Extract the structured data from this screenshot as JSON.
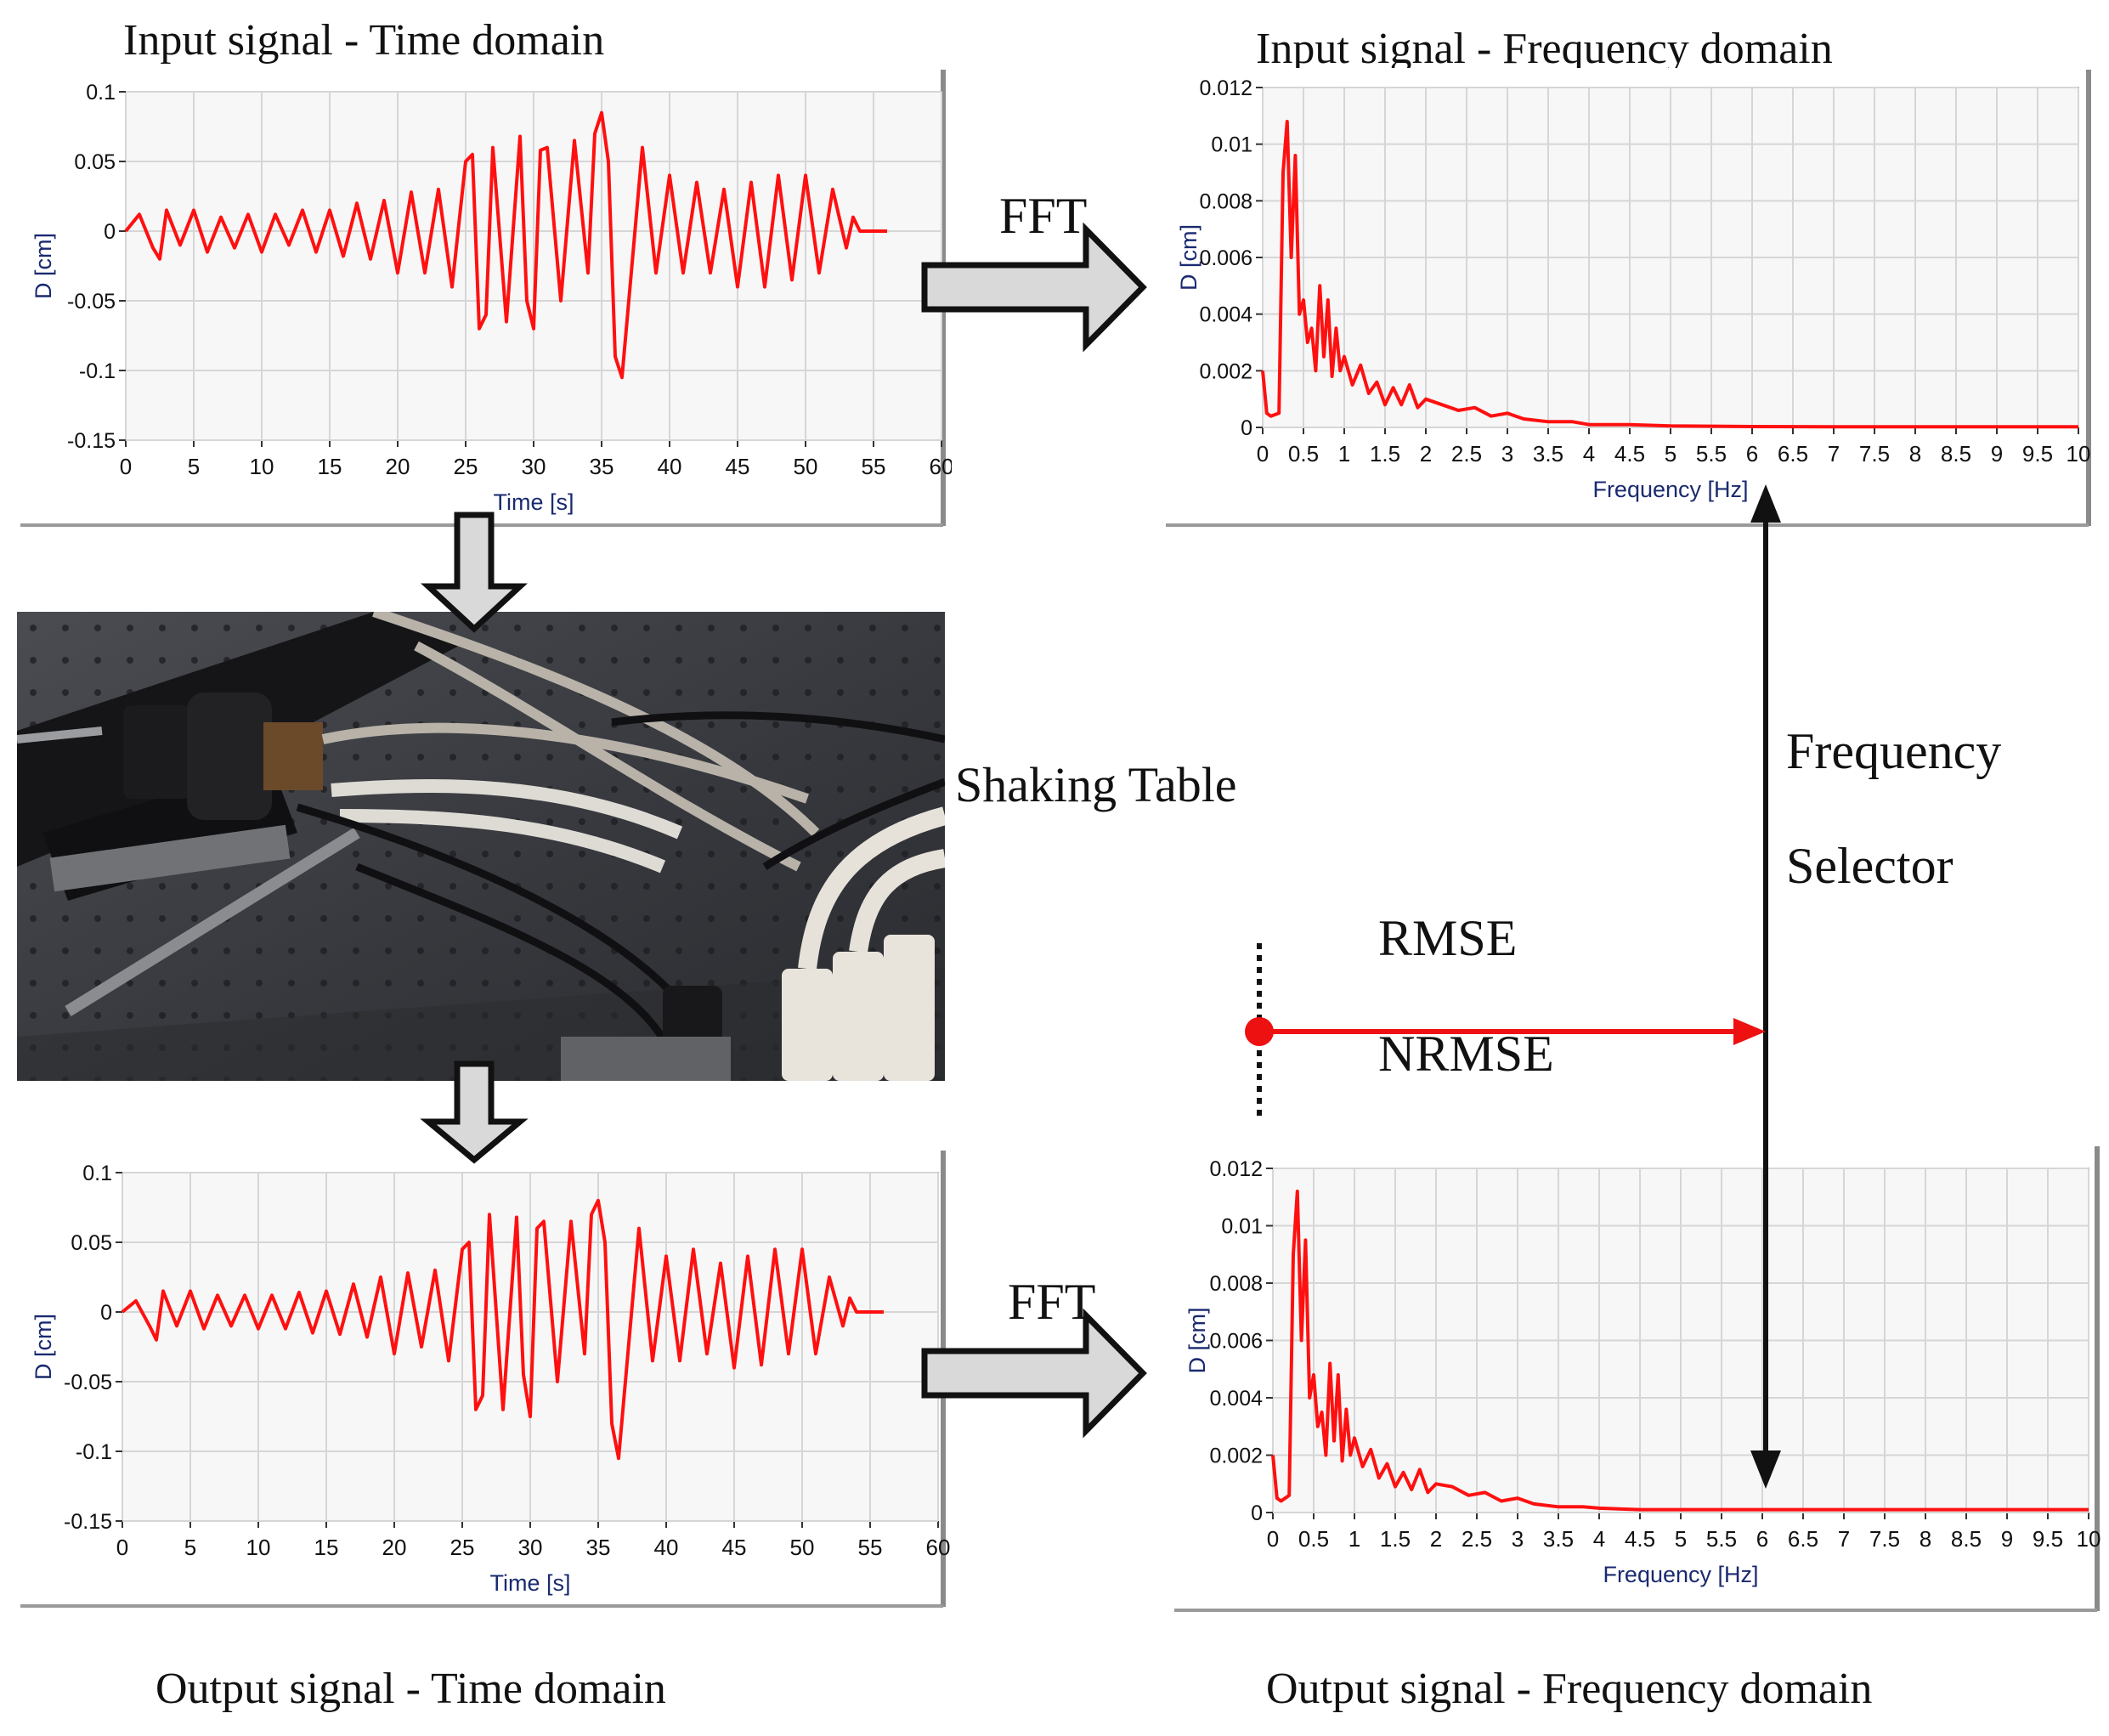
{
  "captions": {
    "input_time": "Input signal - Time domain",
    "input_freq": "Input signal - Frequency domain",
    "output_time": "Output signal - Time domain",
    "output_freq": "Output signal - Frequency domain"
  },
  "labels": {
    "fft_top": "FFT",
    "fft_bottom": "FFT",
    "shaking_table": "Shaking Table",
    "frequency": "Frequency",
    "selector": "Selector",
    "rmse": "RMSE",
    "nrmse": "NRMSE"
  },
  "colors": {
    "signal": "#ff1010",
    "grid": "#d6d6d6",
    "axis_label": "#1a2a70",
    "arrow_fill": "#d9d9d9"
  },
  "chart_data": [
    {
      "id": "input_time",
      "type": "line",
      "xlabel": "Time [s]",
      "ylabel": "D [cm]",
      "xlim": [
        0,
        60
      ],
      "ylim": [
        -0.15,
        0.1
      ],
      "xticks": [
        "0",
        "5",
        "10",
        "15",
        "20",
        "25",
        "30",
        "35",
        "40",
        "45",
        "50",
        "55",
        "60"
      ],
      "yticks": [
        "0.1",
        "0.05",
        "0",
        "-0.05",
        "-0.1",
        "-0.15"
      ],
      "grid": true,
      "x": [
        0,
        1,
        2,
        2.5,
        3,
        4,
        5,
        6,
        7,
        8,
        9,
        10,
        11,
        12,
        13,
        14,
        15,
        16,
        17,
        18,
        19,
        20,
        21,
        22,
        23,
        24,
        25,
        25.5,
        26,
        26.5,
        27,
        28,
        29,
        29.5,
        30,
        30.5,
        31,
        32,
        33,
        34,
        34.5,
        35,
        35.5,
        36,
        36.5,
        37,
        38,
        39,
        40,
        41,
        42,
        43,
        44,
        45,
        46,
        47,
        48,
        49,
        50,
        51,
        52,
        53,
        53.5,
        54,
        55,
        56
      ],
      "y": [
        0,
        0.012,
        -0.012,
        -0.02,
        0.015,
        -0.01,
        0.015,
        -0.015,
        0.01,
        -0.012,
        0.012,
        -0.015,
        0.012,
        -0.01,
        0.015,
        -0.015,
        0.015,
        -0.018,
        0.02,
        -0.02,
        0.022,
        -0.03,
        0.028,
        -0.03,
        0.03,
        -0.04,
        0.05,
        0.055,
        -0.07,
        -0.06,
        0.06,
        -0.065,
        0.068,
        -0.05,
        -0.07,
        0.058,
        0.06,
        -0.05,
        0.065,
        -0.03,
        0.07,
        0.085,
        0.05,
        -0.09,
        -0.105,
        -0.05,
        0.06,
        -0.03,
        0.04,
        -0.03,
        0.035,
        -0.03,
        0.03,
        -0.04,
        0.035,
        -0.04,
        0.04,
        -0.035,
        0.04,
        -0.03,
        0.03,
        -0.012,
        0.01,
        0,
        0,
        0
      ]
    },
    {
      "id": "input_freq",
      "type": "line",
      "xlabel": "Frequency [Hz]",
      "ylabel": "D [cm]",
      "xlim": [
        0,
        10
      ],
      "ylim": [
        0,
        0.012
      ],
      "xticks": [
        "0",
        "0.5",
        "1",
        "1.5",
        "2",
        "2.5",
        "3",
        "3.5",
        "4",
        "4.5",
        "5",
        "5.5",
        "6",
        "6.5",
        "7",
        "7.5",
        "8",
        "8.5",
        "9",
        "9.5",
        "10"
      ],
      "yticks": [
        "0.012",
        "0.01",
        "0.008",
        "0.006",
        "0.004",
        "0.002",
        "0"
      ],
      "grid": true,
      "x": [
        0,
        0.05,
        0.1,
        0.2,
        0.25,
        0.3,
        0.35,
        0.4,
        0.45,
        0.5,
        0.55,
        0.6,
        0.65,
        0.7,
        0.75,
        0.8,
        0.85,
        0.9,
        0.95,
        1,
        1.1,
        1.2,
        1.3,
        1.4,
        1.5,
        1.6,
        1.7,
        1.8,
        1.9,
        2,
        2.2,
        2.4,
        2.6,
        2.8,
        3,
        3.2,
        3.5,
        3.8,
        4,
        4.5,
        5,
        6,
        7,
        8,
        9,
        10
      ],
      "y": [
        0.002,
        0.0005,
        0.0004,
        0.0005,
        0.009,
        0.0108,
        0.006,
        0.0096,
        0.004,
        0.0045,
        0.003,
        0.0035,
        0.002,
        0.005,
        0.0025,
        0.0045,
        0.0018,
        0.0035,
        0.002,
        0.0025,
        0.0015,
        0.0022,
        0.0012,
        0.0016,
        0.0008,
        0.0014,
        0.0008,
        0.0015,
        0.0007,
        0.001,
        0.0008,
        0.0006,
        0.0007,
        0.0004,
        0.0005,
        0.0003,
        0.0002,
        0.0002,
        0.0001,
        0.0001,
        5e-05,
        3e-05,
        2e-05,
        2e-05,
        2e-05,
        2e-05
      ]
    },
    {
      "id": "output_time",
      "type": "line",
      "xlabel": "Time [s]",
      "ylabel": "D [cm]",
      "xlim": [
        0,
        60
      ],
      "ylim": [
        -0.15,
        0.1
      ],
      "xticks": [
        "0",
        "5",
        "10",
        "15",
        "20",
        "25",
        "30",
        "35",
        "40",
        "45",
        "50",
        "55",
        "60"
      ],
      "yticks": [
        "0.1",
        "0.05",
        "0",
        "-0.05",
        "-0.1",
        "-0.15"
      ],
      "grid": true,
      "x": [
        0,
        1,
        2,
        2.5,
        3,
        4,
        5,
        6,
        7,
        8,
        9,
        10,
        11,
        12,
        13,
        14,
        15,
        16,
        17,
        18,
        19,
        20,
        21,
        22,
        23,
        24,
        25,
        25.5,
        26,
        26.5,
        27,
        28,
        29,
        29.5,
        30,
        30.5,
        31,
        32,
        33,
        34,
        34.5,
        35,
        35.5,
        36,
        36.5,
        37,
        38,
        39,
        40,
        41,
        42,
        43,
        44,
        45,
        46,
        47,
        48,
        49,
        50,
        51,
        52,
        53,
        53.5,
        54,
        55,
        56
      ],
      "y": [
        0,
        0.008,
        -0.01,
        -0.02,
        0.015,
        -0.01,
        0.015,
        -0.012,
        0.012,
        -0.01,
        0.012,
        -0.012,
        0.012,
        -0.012,
        0.014,
        -0.015,
        0.015,
        -0.016,
        0.02,
        -0.018,
        0.025,
        -0.03,
        0.028,
        -0.025,
        0.03,
        -0.035,
        0.045,
        0.05,
        -0.07,
        -0.06,
        0.07,
        -0.07,
        0.068,
        -0.045,
        -0.075,
        0.06,
        0.065,
        -0.05,
        0.065,
        -0.03,
        0.07,
        0.08,
        0.05,
        -0.08,
        -0.105,
        -0.05,
        0.06,
        -0.035,
        0.04,
        -0.035,
        0.045,
        -0.03,
        0.035,
        -0.04,
        0.04,
        -0.038,
        0.045,
        -0.03,
        0.045,
        -0.03,
        0.025,
        -0.01,
        0.01,
        0,
        0,
        0
      ]
    },
    {
      "id": "output_freq",
      "type": "line",
      "xlabel": "Frequency [Hz]",
      "ylabel": "D [cm]",
      "xlim": [
        0,
        10
      ],
      "ylim": [
        0,
        0.012
      ],
      "xticks": [
        "0",
        "0.5",
        "1",
        "1.5",
        "2",
        "2.5",
        "3",
        "3.5",
        "4",
        "4.5",
        "5",
        "5.5",
        "6",
        "6.5",
        "7",
        "7.5",
        "8",
        "8.5",
        "9",
        "9.5",
        "10"
      ],
      "yticks": [
        "0.012",
        "0.01",
        "0.008",
        "0.006",
        "0.004",
        "0.002",
        "0"
      ],
      "grid": true,
      "x": [
        0,
        0.05,
        0.1,
        0.2,
        0.25,
        0.3,
        0.35,
        0.4,
        0.45,
        0.5,
        0.55,
        0.6,
        0.65,
        0.7,
        0.75,
        0.8,
        0.85,
        0.9,
        0.95,
        1,
        1.1,
        1.2,
        1.3,
        1.4,
        1.5,
        1.6,
        1.7,
        1.8,
        1.9,
        2,
        2.2,
        2.4,
        2.6,
        2.8,
        3,
        3.2,
        3.5,
        3.8,
        4,
        4.5,
        5,
        6,
        7,
        8,
        9,
        10
      ],
      "y": [
        0.002,
        0.0005,
        0.0004,
        0.0006,
        0.009,
        0.0112,
        0.006,
        0.0095,
        0.004,
        0.0048,
        0.003,
        0.0035,
        0.002,
        0.0052,
        0.0025,
        0.0048,
        0.0018,
        0.0036,
        0.002,
        0.0026,
        0.0016,
        0.0022,
        0.0012,
        0.0017,
        0.0009,
        0.0014,
        0.0008,
        0.0015,
        0.0007,
        0.001,
        0.0009,
        0.0006,
        0.0007,
        0.0004,
        0.0005,
        0.0003,
        0.0002,
        0.0002,
        0.00015,
        0.0001,
        0.0001,
        0.0001,
        0.0001,
        0.0001,
        0.0001,
        0.0001
      ]
    }
  ]
}
